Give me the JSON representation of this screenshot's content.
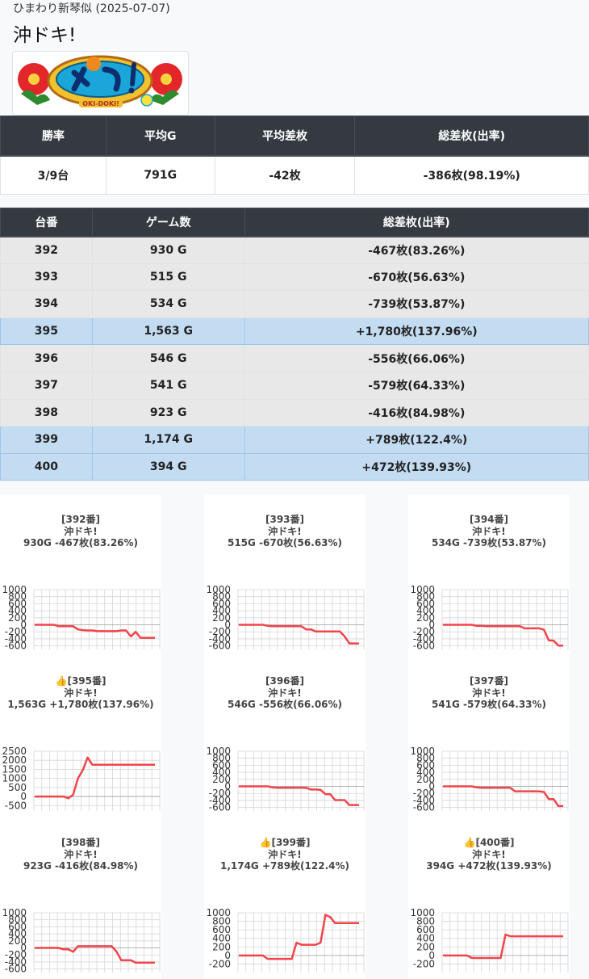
{
  "header": {
    "store": "ひまわり新琴似 (2025-07-07)",
    "machine": "沖ドキ!"
  },
  "logo": {
    "text": "OKI-DOKI!"
  },
  "summary": {
    "headers": [
      "勝率",
      "平均G",
      "平均差枚",
      "総差枚(出率)"
    ],
    "values": [
      "3/9台",
      "791G",
      "-42枚",
      "-386枚(98.19%)"
    ]
  },
  "units_table": {
    "headers": [
      "台番",
      "ゲーム数",
      "総差枚(出率)"
    ],
    "rows": [
      {
        "no": "392",
        "games": "930 G",
        "diff": "-467枚(83.26%)",
        "plus": false
      },
      {
        "no": "393",
        "games": "515 G",
        "diff": "-670枚(56.63%)",
        "plus": false
      },
      {
        "no": "394",
        "games": "534 G",
        "diff": "-739枚(53.87%)",
        "plus": false
      },
      {
        "no": "395",
        "games": "1,563 G",
        "diff": "+1,780枚(137.96%)",
        "plus": true
      },
      {
        "no": "396",
        "games": "546 G",
        "diff": "-556枚(66.06%)",
        "plus": false
      },
      {
        "no": "397",
        "games": "541 G",
        "diff": "-579枚(64.33%)",
        "plus": false
      },
      {
        "no": "398",
        "games": "923 G",
        "diff": "-416枚(84.98%)",
        "plus": false
      },
      {
        "no": "399",
        "games": "1,174 G",
        "diff": "+789枚(122.4%)",
        "plus": true
      },
      {
        "no": "400",
        "games": "394 G",
        "diff": "+472枚(139.93%)",
        "plus": true
      }
    ]
  },
  "colors": {
    "line": "#f0454b",
    "header_bg": "#343a40",
    "plus_row": "#c3dcf2",
    "minus_row": "#e8e8e8"
  },
  "icons": {
    "thumb": "thumbs-up-icon"
  },
  "chart_data": [
    {
      "type": "line",
      "line1": "[392番]",
      "line2": "沖ドキ!",
      "line3": "930G -467枚(83.26%)",
      "thumb": false,
      "ylim": [
        -700,
        1000
      ],
      "yticks": [
        "1000",
        "800",
        "600",
        "400",
        "200",
        "0",
        "-200",
        "-400",
        "-600"
      ],
      "ytick_vals": [
        1000,
        800,
        600,
        400,
        200,
        0,
        -200,
        -400,
        -600
      ],
      "values": [
        0,
        0,
        0,
        0,
        0,
        -40,
        -40,
        -40,
        -40,
        -130,
        -150,
        -160,
        -160,
        -180,
        -180,
        -180,
        -180,
        -180,
        -160,
        -160,
        -330,
        -200,
        -370,
        -370,
        -370,
        -370
      ]
    },
    {
      "type": "line",
      "line1": "[393番]",
      "line2": "沖ドキ!",
      "line3": "515G -670枚(56.63%)",
      "thumb": false,
      "ylim": [
        -700,
        1000
      ],
      "yticks": [
        "1000",
        "800",
        "600",
        "400",
        "200",
        "0",
        "-200",
        "-400",
        "-600"
      ],
      "ytick_vals": [
        1000,
        800,
        600,
        400,
        200,
        0,
        -200,
        -400,
        -600
      ],
      "values": [
        0,
        0,
        0,
        0,
        0,
        0,
        -30,
        -40,
        -40,
        -40,
        -40,
        -40,
        -40,
        -40,
        -130,
        -130,
        -190,
        -190,
        -190,
        -190,
        -190,
        -190,
        -330,
        -530,
        -530,
        -530
      ]
    },
    {
      "type": "line",
      "line1": "[394番]",
      "line2": "沖ドキ!",
      "line3": "534G -739枚(53.87%)",
      "thumb": false,
      "ylim": [
        -700,
        1000
      ],
      "yticks": [
        "1000",
        "800",
        "600",
        "400",
        "200",
        "0",
        "-200",
        "-400",
        "-600"
      ],
      "ytick_vals": [
        1000,
        800,
        600,
        400,
        200,
        0,
        -200,
        -400,
        -600
      ],
      "values": [
        0,
        0,
        0,
        0,
        0,
        0,
        0,
        -30,
        -30,
        -40,
        -40,
        -40,
        -40,
        -40,
        -40,
        -40,
        -40,
        -100,
        -100,
        -100,
        -100,
        -140,
        -440,
        -450,
        -590,
        -590
      ]
    },
    {
      "type": "line",
      "line1": "[395番]",
      "line2": "沖ドキ!",
      "line3": "1,563G +1,780枚(137.96%)",
      "thumb": true,
      "ylim": [
        -800,
        2500
      ],
      "yticks": [
        "2500",
        "2000",
        "1500",
        "1000",
        "500",
        "0",
        "-500"
      ],
      "ytick_vals": [
        2500,
        2000,
        1500,
        1000,
        500,
        0,
        -500
      ],
      "values": [
        0,
        0,
        0,
        0,
        0,
        0,
        0,
        -100,
        100,
        1000,
        1450,
        2150,
        1750,
        1750,
        1750,
        1750,
        1750,
        1750,
        1750,
        1750,
        1750,
        1750,
        1750,
        1750,
        1750,
        1750
      ]
    },
    {
      "type": "line",
      "line1": "[396番]",
      "line2": "沖ドキ!",
      "line3": "546G -556枚(66.06%)",
      "thumb": false,
      "ylim": [
        -700,
        1000
      ],
      "yticks": [
        "1000",
        "800",
        "600",
        "400",
        "200",
        "0",
        "-200",
        "-400",
        "-600"
      ],
      "ytick_vals": [
        1000,
        800,
        600,
        400,
        200,
        0,
        -200,
        -400,
        -600
      ],
      "values": [
        0,
        0,
        0,
        0,
        0,
        0,
        0,
        -30,
        -40,
        -40,
        -40,
        -40,
        -40,
        -40,
        -40,
        -90,
        -90,
        -100,
        -220,
        -220,
        -390,
        -390,
        -390,
        -530,
        -530,
        -530
      ]
    },
    {
      "type": "line",
      "line1": "[397番]",
      "line2": "沖ドキ!",
      "line3": "541G -579枚(64.33%)",
      "thumb": false,
      "ylim": [
        -700,
        1000
      ],
      "yticks": [
        "1000",
        "800",
        "600",
        "400",
        "200",
        "0",
        "-200",
        "-400",
        "-600"
      ],
      "ytick_vals": [
        1000,
        800,
        600,
        400,
        200,
        0,
        -200,
        -400,
        -600
      ],
      "values": [
        0,
        0,
        0,
        0,
        0,
        0,
        0,
        -30,
        -40,
        -40,
        -40,
        -40,
        -40,
        -40,
        -40,
        -140,
        -140,
        -140,
        -140,
        -140,
        -140,
        -160,
        -360,
        -360,
        -560,
        -560
      ]
    },
    {
      "type": "line",
      "line1": "[398番]",
      "line2": "沖ドキ!",
      "line3": "923G -416枚(84.98%)",
      "thumb": false,
      "ylim": [
        -700,
        1000
      ],
      "yticks": [
        "1000",
        "800",
        "600",
        "400",
        "200",
        "0",
        "-200",
        "-400",
        "-600"
      ],
      "ytick_vals": [
        1000,
        800,
        600,
        400,
        200,
        0,
        -200,
        -400,
        -600
      ],
      "values": [
        0,
        0,
        0,
        0,
        0,
        0,
        -40,
        -40,
        -110,
        50,
        50,
        50,
        50,
        50,
        50,
        50,
        50,
        -100,
        -350,
        -350,
        -350,
        -420,
        -420,
        -420,
        -420,
        -420
      ]
    },
    {
      "type": "line",
      "line1": "[399番]",
      "line2": "沖ドキ!",
      "line3": "1,174G +789枚(122.4%)",
      "thumb": true,
      "ylim": [
        -400,
        1000
      ],
      "yticks": [
        "1000",
        "800",
        "600",
        "400",
        "200",
        "0",
        "-200"
      ],
      "ytick_vals": [
        1000,
        800,
        600,
        400,
        200,
        0,
        -200
      ],
      "values": [
        0,
        0,
        0,
        0,
        0,
        0,
        -80,
        -80,
        -80,
        -80,
        -80,
        -80,
        300,
        250,
        250,
        250,
        250,
        300,
        950,
        900,
        760,
        760,
        760,
        760,
        760,
        760
      ]
    },
    {
      "type": "line",
      "line1": "[400番]",
      "line2": "沖ドキ!",
      "line3": "394G +472枚(139.93%)",
      "thumb": true,
      "ylim": [
        -400,
        1000
      ],
      "yticks": [
        "1000",
        "800",
        "600",
        "400",
        "200",
        "0",
        "-200"
      ],
      "ytick_vals": [
        1000,
        800,
        600,
        400,
        200,
        0,
        -200
      ],
      "values": [
        0,
        0,
        0,
        0,
        0,
        0,
        -60,
        -60,
        -60,
        -60,
        -60,
        -60,
        -60,
        490,
        450,
        450,
        450,
        450,
        450,
        450,
        450,
        450,
        450,
        450,
        450,
        450
      ]
    }
  ]
}
